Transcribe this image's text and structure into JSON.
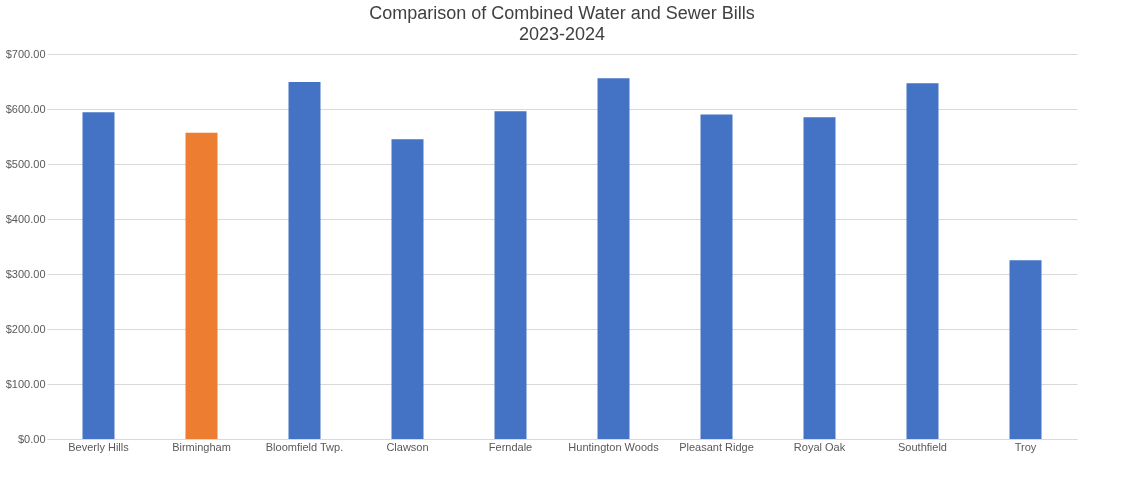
{
  "chart_data": {
    "type": "bar",
    "title": "Comparison of Combined Water and Sewer Bills",
    "subtitle": "2023-2024",
    "categories": [
      "Beverly Hills",
      "Birmingham",
      "Bloomfield Twp.",
      "Clawson",
      "Ferndale",
      "Huntington Woods",
      "Pleasant Ridge",
      "Royal Oak",
      "Southfield",
      "Troy"
    ],
    "values": [
      594,
      557,
      649,
      545,
      596,
      656,
      590,
      585,
      647,
      325
    ],
    "colors": [
      "#4472c4",
      "#ed7d31",
      "#4472c4",
      "#4472c4",
      "#4472c4",
      "#4472c4",
      "#4472c4",
      "#4472c4",
      "#4472c4",
      "#4472c4"
    ],
    "ylim": [
      0,
      700
    ],
    "yticks": [
      {
        "value": 0,
        "label": "$0.00"
      },
      {
        "value": 100,
        "label": "$100.00"
      },
      {
        "value": 200,
        "label": "$200.00"
      },
      {
        "value": 300,
        "label": "$300.00"
      },
      {
        "value": 400,
        "label": "$400.00"
      },
      {
        "value": 500,
        "label": "$500.00"
      },
      {
        "value": 600,
        "label": "$600.00"
      },
      {
        "value": 700,
        "label": "$700.00"
      }
    ],
    "grid": "y",
    "legend": false
  }
}
